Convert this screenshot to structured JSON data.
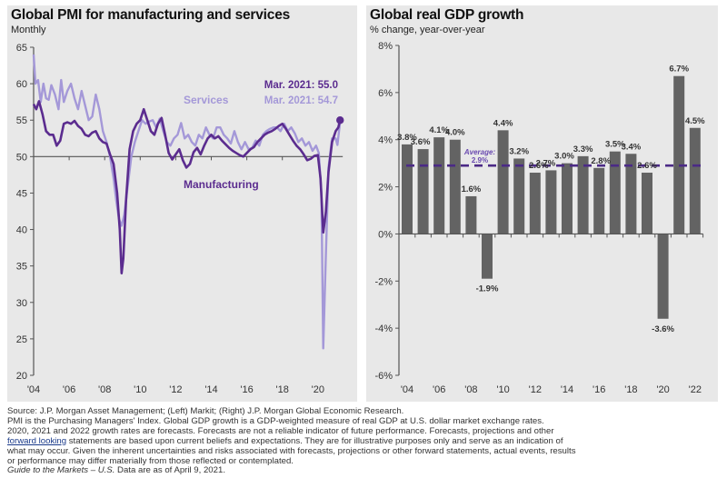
{
  "left": {
    "title": "Global PMI for manufacturing and services",
    "subtitle": "Monthly"
  },
  "right": {
    "title": "Global real GDP growth",
    "subtitle": "% change, year-over-year"
  },
  "footer": {
    "lines": [
      "Source: J.P. Morgan Asset Management; (Left) Markit; (Right) J.P. Morgan Global Economic Research.",
      "PMI is the Purchasing Managers' Index. Global GDP growth is a GDP-weighted measure of real GDP at U.S. dollar market exchange rates.",
      "2020, 2021 and 2022 growth rates are forecasts. Forecasts are not a reliable indicator of future performance. Forecasts, projections and other"
    ],
    "line4_link": "forward looking",
    "line4_rest": " statements are based upon current beliefs and expectations. They are for illustrative purposes only and serve as an indication of",
    "line5": "what may occur. Given the inherent uncertainties and risks associated with forecasts, projections or other forward statements, actual events, results",
    "line6": "or performance may differ materially from those reflected or contemplated.",
    "line7_italic": "Guide to the Markets – U.S.",
    "line7_rest": " Data are as of April 9, 2021."
  },
  "chart_data": [
    {
      "type": "line",
      "title": "Global PMI for manufacturing and services",
      "subtitle": "Monthly",
      "xlabel": "",
      "ylabel": "",
      "ylim": [
        20,
        65
      ],
      "yticks": [
        20,
        25,
        30,
        35,
        40,
        45,
        50,
        55,
        60,
        65
      ],
      "xlim": [
        2004.0,
        2021.6
      ],
      "xticks": [
        2004,
        2006,
        2008,
        2010,
        2012,
        2014,
        2016,
        2018,
        2020
      ],
      "xtick_labels": [
        "'04",
        "'06",
        "'08",
        "'10",
        "'12",
        "'14",
        "'16",
        "'18",
        "'20"
      ],
      "baseline": 50,
      "colors": {
        "manufacturing": "#5b2c8f",
        "services": "#a498d8"
      },
      "series": [
        {
          "name": "Manufacturing",
          "x": [
            2004.0,
            2004.15,
            2004.3,
            2004.5,
            2004.7,
            2004.9,
            2005.1,
            2005.3,
            2005.5,
            2005.7,
            2005.9,
            2006.1,
            2006.3,
            2006.5,
            2006.7,
            2006.9,
            2007.1,
            2007.3,
            2007.5,
            2007.7,
            2007.9,
            2008.1,
            2008.3,
            2008.5,
            2008.7,
            2008.85,
            2008.95,
            2009.05,
            2009.2,
            2009.4,
            2009.6,
            2009.8,
            2010.0,
            2010.2,
            2010.4,
            2010.6,
            2010.8,
            2011.0,
            2011.2,
            2011.4,
            2011.6,
            2011.8,
            2012.0,
            2012.2,
            2012.4,
            2012.6,
            2012.8,
            2013.0,
            2013.2,
            2013.4,
            2013.6,
            2013.8,
            2014.0,
            2014.2,
            2014.4,
            2014.6,
            2014.8,
            2015.0,
            2015.2,
            2015.4,
            2015.6,
            2015.8,
            2016.0,
            2016.2,
            2016.4,
            2016.6,
            2016.8,
            2017.0,
            2017.2,
            2017.4,
            2017.6,
            2017.8,
            2018.0,
            2018.2,
            2018.4,
            2018.6,
            2018.8,
            2019.0,
            2019.2,
            2019.4,
            2019.6,
            2019.8,
            2020.0,
            2020.15,
            2020.3,
            2020.45,
            2020.6,
            2020.8,
            2021.0,
            2021.15,
            2021.25
          ],
          "y": [
            57.2,
            56.5,
            57.6,
            55.8,
            53.5,
            53.0,
            53.0,
            51.5,
            52.2,
            54.5,
            54.7,
            54.5,
            54.9,
            54.2,
            53.8,
            53.0,
            52.8,
            53.3,
            53.5,
            52.5,
            52.0,
            51.8,
            50.3,
            49.0,
            45.0,
            40.0,
            34.0,
            36.0,
            44.0,
            51.0,
            53.5,
            54.5,
            55.0,
            56.5,
            55.0,
            53.5,
            53.0,
            54.5,
            55.3,
            53.0,
            50.5,
            49.6,
            50.3,
            51.0,
            49.5,
            48.5,
            49.0,
            50.6,
            51.2,
            50.3,
            51.5,
            52.5,
            53.0,
            52.5,
            52.8,
            52.2,
            51.7,
            51.2,
            50.8,
            50.5,
            50.2,
            50.0,
            50.5,
            51.0,
            51.3,
            52.0,
            52.5,
            53.0,
            53.3,
            53.5,
            53.8,
            54.2,
            54.5,
            53.8,
            53.0,
            52.2,
            51.5,
            51.0,
            50.3,
            49.5,
            49.7,
            50.1,
            50.2,
            47.0,
            39.6,
            42.4,
            47.9,
            52.0,
            53.5,
            54.0,
            55.0
          ]
        },
        {
          "name": "Services",
          "x": [
            2004.0,
            2004.1,
            2004.25,
            2004.4,
            2004.55,
            2004.7,
            2004.85,
            2005.0,
            2005.2,
            2005.4,
            2005.55,
            2005.7,
            2005.9,
            2006.1,
            2006.3,
            2006.5,
            2006.7,
            2006.9,
            2007.1,
            2007.3,
            2007.5,
            2007.7,
            2007.9,
            2008.1,
            2008.3,
            2008.5,
            2008.65,
            2008.8,
            2008.95,
            2009.1,
            2009.3,
            2009.5,
            2009.7,
            2009.9,
            2010.1,
            2010.3,
            2010.5,
            2010.7,
            2010.9,
            2011.1,
            2011.3,
            2011.5,
            2011.7,
            2011.9,
            2012.1,
            2012.3,
            2012.5,
            2012.7,
            2012.9,
            2013.1,
            2013.3,
            2013.5,
            2013.7,
            2013.9,
            2014.1,
            2014.3,
            2014.5,
            2014.7,
            2014.9,
            2015.1,
            2015.3,
            2015.5,
            2015.7,
            2015.9,
            2016.1,
            2016.3,
            2016.5,
            2016.7,
            2016.9,
            2017.1,
            2017.3,
            2017.5,
            2017.7,
            2017.9,
            2018.1,
            2018.3,
            2018.5,
            2018.7,
            2018.9,
            2019.1,
            2019.3,
            2019.5,
            2019.7,
            2019.9,
            2020.05,
            2020.2,
            2020.3,
            2020.45,
            2020.6,
            2020.8,
            2021.0,
            2021.1,
            2021.25
          ],
          "y": [
            64.0,
            60.0,
            60.5,
            57.5,
            60.0,
            58.0,
            57.8,
            59.8,
            58.5,
            56.5,
            60.5,
            57.5,
            59.0,
            60.0,
            58.0,
            56.5,
            59.0,
            57.0,
            55.0,
            55.5,
            58.5,
            56.5,
            53.5,
            52.0,
            50.0,
            47.0,
            44.0,
            41.5,
            40.5,
            42.0,
            46.0,
            50.0,
            52.0,
            53.5,
            55.0,
            54.5,
            54.8,
            55.0,
            54.0,
            55.2,
            53.5,
            52.0,
            51.5,
            52.5,
            53.0,
            54.6,
            52.5,
            53.0,
            52.0,
            51.5,
            53.0,
            52.5,
            54.0,
            53.0,
            52.5,
            54.0,
            54.0,
            53.0,
            52.5,
            51.8,
            53.5,
            52.0,
            51.0,
            52.0,
            51.0,
            51.2,
            52.2,
            51.5,
            53.0,
            53.5,
            53.8,
            54.0,
            54.0,
            53.5,
            54.5,
            53.5,
            54.0,
            53.2,
            52.0,
            52.5,
            51.5,
            52.0,
            50.8,
            51.5,
            50.5,
            45.0,
            23.7,
            36.5,
            48.5,
            52.5,
            52.5,
            51.6,
            54.7
          ]
        }
      ],
      "annotations": [
        {
          "text": "Mar. 2021: 55.0",
          "series": "Manufacturing",
          "x": 2021.25,
          "y": 55.0
        },
        {
          "text": "Mar. 2021: 54.7",
          "series": "Services",
          "x": 2021.25,
          "y": 54.7
        },
        {
          "text": "Services",
          "series": "Services"
        },
        {
          "text": "Manufacturing",
          "series": "Manufacturing"
        }
      ],
      "ytick_labels": [
        "20",
        "25",
        "30",
        "35",
        "40",
        "45",
        "50",
        "55",
        "60",
        "65"
      ]
    },
    {
      "type": "bar",
      "title": "Global real GDP growth",
      "subtitle": "% change, year-over-year",
      "xlabel": "",
      "ylabel": "",
      "ylim": [
        -6,
        8
      ],
      "yticks": [
        -6,
        -4,
        -2,
        0,
        2,
        4,
        6,
        8
      ],
      "ytick_labels": [
        "-6%",
        "-4%",
        "-2%",
        "0%",
        "2%",
        "4%",
        "6%",
        "8%"
      ],
      "categories": [
        "2004",
        "2005",
        "2006",
        "2007",
        "2008",
        "2009",
        "2010",
        "2011",
        "2012",
        "2013",
        "2014",
        "2015",
        "2016",
        "2017",
        "2018",
        "2019",
        "2020",
        "2021",
        "2022"
      ],
      "xtick_labels": [
        "'04",
        "'06",
        "'08",
        "'10",
        "'12",
        "'14",
        "'16",
        "'18",
        "'20",
        "'22"
      ],
      "values": [
        3.8,
        3.6,
        4.1,
        4.0,
        1.6,
        -1.9,
        4.4,
        3.2,
        2.6,
        2.7,
        3.0,
        3.3,
        2.8,
        3.5,
        3.4,
        2.6,
        -3.6,
        6.7,
        4.5
      ],
      "data_labels": [
        "3.8%",
        "3.6%",
        "4.1%",
        "4.0%",
        "1.6%",
        "-1.9%",
        "4.4%",
        "3.2%",
        "2.6%",
        "2.7%",
        "3.0%",
        "3.3%",
        "2.8%",
        "3.5%",
        "3.4%",
        "2.6%",
        "-3.6%",
        "6.7%",
        "4.5%"
      ],
      "bar_color": "#636363",
      "average": {
        "value": 2.9,
        "label_line1": "Average:",
        "label_line2": "2.9%",
        "color": "#4b2a86"
      }
    }
  ]
}
